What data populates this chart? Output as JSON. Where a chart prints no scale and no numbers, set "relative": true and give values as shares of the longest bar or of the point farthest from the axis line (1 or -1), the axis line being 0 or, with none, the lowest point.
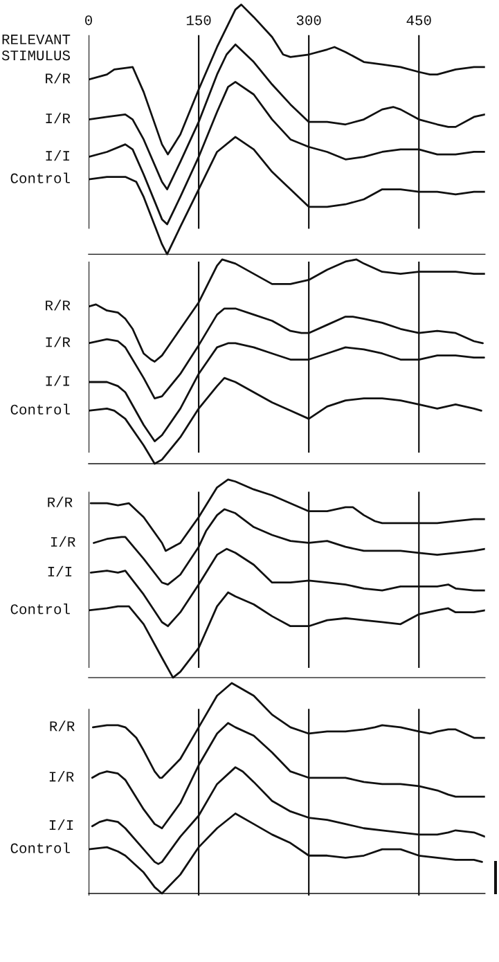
{
  "chart_data": [
    {
      "type": "line",
      "relative": true,
      "xlim": [
        0,
        540
      ],
      "xticks": [
        0,
        150,
        300,
        450
      ],
      "grid": "x",
      "tick_labels": "x",
      "annotations": [
        "RELEVANT\nSTIMULUS"
      ],
      "series": [
        {
          "name": "R/R",
          "color": "#111111",
          "x": [
            0,
            25,
            35,
            60,
            75,
            100,
            108,
            125,
            150,
            175,
            200,
            208,
            225,
            250,
            265,
            275,
            300,
            325,
            335,
            350,
            375,
            400,
            425,
            450,
            465,
            475,
            500,
            525,
            540
          ],
          "values": [
            0.7,
            0.72,
            0.74,
            0.75,
            0.65,
            0.44,
            0.4,
            0.48,
            0.66,
            0.83,
            0.98,
            1.0,
            0.95,
            0.87,
            0.8,
            0.79,
            0.8,
            0.82,
            0.83,
            0.81,
            0.77,
            0.76,
            0.75,
            0.73,
            0.72,
            0.72,
            0.74,
            0.75,
            0.75
          ]
        },
        {
          "name": "I/R",
          "color": "#111111",
          "x": [
            0,
            25,
            50,
            60,
            75,
            100,
            107,
            125,
            150,
            175,
            188,
            200,
            225,
            250,
            275,
            300,
            325,
            350,
            375,
            400,
            415,
            425,
            450,
            475,
            490,
            500,
            525,
            540
          ],
          "values": [
            0.54,
            0.55,
            0.56,
            0.54,
            0.46,
            0.29,
            0.26,
            0.37,
            0.53,
            0.72,
            0.8,
            0.84,
            0.77,
            0.68,
            0.6,
            0.53,
            0.53,
            0.52,
            0.54,
            0.58,
            0.59,
            0.58,
            0.54,
            0.52,
            0.51,
            0.51,
            0.55,
            0.56
          ]
        },
        {
          "name": "I/I",
          "color": "#111111",
          "x": [
            0,
            25,
            50,
            60,
            75,
            100,
            107,
            125,
            150,
            175,
            190,
            200,
            225,
            250,
            275,
            300,
            325,
            350,
            375,
            400,
            425,
            450,
            475,
            500,
            525,
            540
          ],
          "values": [
            0.39,
            0.41,
            0.44,
            0.42,
            0.32,
            0.14,
            0.12,
            0.23,
            0.39,
            0.57,
            0.67,
            0.69,
            0.64,
            0.54,
            0.46,
            0.43,
            0.41,
            0.38,
            0.39,
            0.41,
            0.42,
            0.42,
            0.4,
            0.4,
            0.41,
            0.41
          ]
        },
        {
          "name": "Control",
          "color": "#111111",
          "x": [
            0,
            25,
            50,
            65,
            75,
            100,
            107,
            125,
            150,
            175,
            200,
            225,
            250,
            275,
            300,
            325,
            350,
            375,
            400,
            425,
            450,
            475,
            500,
            525,
            540
          ],
          "values": [
            0.3,
            0.31,
            0.31,
            0.29,
            0.23,
            0.04,
            0.0,
            0.11,
            0.26,
            0.41,
            0.47,
            0.42,
            0.33,
            0.26,
            0.19,
            0.19,
            0.2,
            0.22,
            0.26,
            0.26,
            0.25,
            0.25,
            0.24,
            0.25,
            0.25
          ]
        }
      ]
    },
    {
      "type": "line",
      "relative": true,
      "xlim": [
        0,
        540
      ],
      "xticks": [
        0,
        150,
        300,
        450
      ],
      "grid": "x",
      "tick_labels": false,
      "series": [
        {
          "name": "R/R",
          "color": "#111111",
          "x": [
            0,
            10,
            25,
            40,
            50,
            60,
            75,
            85,
            90,
            100,
            125,
            150,
            175,
            182,
            200,
            225,
            250,
            275,
            300,
            325,
            350,
            365,
            375,
            400,
            425,
            450,
            475,
            500,
            525,
            540
          ],
          "values": [
            0.77,
            0.78,
            0.75,
            0.74,
            0.71,
            0.66,
            0.54,
            0.51,
            0.5,
            0.53,
            0.66,
            0.79,
            0.97,
            1.0,
            0.98,
            0.93,
            0.88,
            0.88,
            0.9,
            0.95,
            0.99,
            1.0,
            0.98,
            0.94,
            0.93,
            0.94,
            0.94,
            0.94,
            0.93,
            0.93
          ]
        },
        {
          "name": "I/R",
          "color": "#111111",
          "x": [
            0,
            25,
            40,
            50,
            75,
            90,
            100,
            125,
            150,
            175,
            185,
            200,
            225,
            250,
            275,
            290,
            300,
            325,
            350,
            360,
            375,
            400,
            425,
            450,
            475,
            500,
            525,
            537
          ],
          "values": [
            0.59,
            0.61,
            0.6,
            0.57,
            0.42,
            0.32,
            0.33,
            0.44,
            0.58,
            0.73,
            0.76,
            0.76,
            0.73,
            0.7,
            0.65,
            0.64,
            0.64,
            0.68,
            0.72,
            0.72,
            0.71,
            0.69,
            0.66,
            0.64,
            0.65,
            0.64,
            0.6,
            0.59
          ]
        },
        {
          "name": "I/I",
          "color": "#111111",
          "x": [
            0,
            25,
            40,
            50,
            75,
            90,
            100,
            125,
            150,
            175,
            190,
            200,
            225,
            250,
            275,
            300,
            325,
            350,
            375,
            400,
            425,
            450,
            475,
            500,
            525,
            539
          ],
          "values": [
            0.4,
            0.4,
            0.38,
            0.35,
            0.19,
            0.11,
            0.14,
            0.27,
            0.44,
            0.57,
            0.59,
            0.59,
            0.57,
            0.54,
            0.51,
            0.51,
            0.54,
            0.57,
            0.56,
            0.54,
            0.51,
            0.51,
            0.53,
            0.53,
            0.52,
            0.52
          ]
        },
        {
          "name": "Control",
          "color": "#111111",
          "x": [
            0,
            25,
            35,
            50,
            75,
            90,
            100,
            125,
            150,
            175,
            185,
            200,
            225,
            250,
            275,
            300,
            325,
            350,
            375,
            400,
            425,
            450,
            475,
            500,
            525,
            535
          ],
          "values": [
            0.26,
            0.27,
            0.26,
            0.22,
            0.09,
            0.0,
            0.02,
            0.13,
            0.27,
            0.38,
            0.42,
            0.4,
            0.35,
            0.3,
            0.26,
            0.22,
            0.28,
            0.31,
            0.32,
            0.32,
            0.31,
            0.29,
            0.27,
            0.29,
            0.27,
            0.26
          ]
        }
      ]
    },
    {
      "type": "line",
      "relative": true,
      "xlim": [
        0,
        540
      ],
      "xticks": [
        0,
        150,
        300,
        450
      ],
      "grid": "x",
      "tick_labels": false,
      "series": [
        {
          "name": "R/R",
          "color": "#111111",
          "x": [
            3,
            25,
            40,
            55,
            75,
            100,
            105,
            125,
            150,
            175,
            190,
            200,
            225,
            250,
            275,
            300,
            325,
            350,
            360,
            375,
            390,
            400,
            425,
            450,
            475,
            500,
            525,
            540
          ],
          "values": [
            0.88,
            0.88,
            0.87,
            0.88,
            0.81,
            0.68,
            0.64,
            0.68,
            0.81,
            0.96,
            1.0,
            0.99,
            0.95,
            0.92,
            0.88,
            0.84,
            0.84,
            0.86,
            0.86,
            0.82,
            0.79,
            0.78,
            0.78,
            0.78,
            0.78,
            0.79,
            0.8,
            0.8
          ]
        },
        {
          "name": "I/R",
          "color": "#111111",
          "x": [
            7,
            25,
            45,
            50,
            75,
            100,
            108,
            125,
            150,
            160,
            175,
            185,
            200,
            225,
            250,
            275,
            300,
            325,
            350,
            375,
            400,
            425,
            450,
            475,
            500,
            525,
            540
          ],
          "values": [
            0.68,
            0.7,
            0.71,
            0.71,
            0.6,
            0.48,
            0.47,
            0.52,
            0.66,
            0.74,
            0.82,
            0.85,
            0.83,
            0.76,
            0.72,
            0.69,
            0.68,
            0.69,
            0.66,
            0.64,
            0.64,
            0.64,
            0.63,
            0.62,
            0.63,
            0.64,
            0.65
          ]
        },
        {
          "name": "I/I",
          "color": "#111111",
          "x": [
            3,
            25,
            40,
            50,
            75,
            100,
            108,
            125,
            150,
            175,
            188,
            200,
            225,
            250,
            275,
            300,
            325,
            350,
            375,
            400,
            425,
            450,
            475,
            490,
            500,
            525,
            540
          ],
          "values": [
            0.53,
            0.54,
            0.53,
            0.54,
            0.42,
            0.28,
            0.26,
            0.33,
            0.47,
            0.62,
            0.65,
            0.63,
            0.57,
            0.48,
            0.48,
            0.49,
            0.48,
            0.47,
            0.45,
            0.44,
            0.46,
            0.46,
            0.46,
            0.47,
            0.45,
            0.44,
            0.44
          ]
        },
        {
          "name": "Control",
          "color": "#111111",
          "x": [
            0,
            25,
            40,
            55,
            75,
            100,
            115,
            125,
            150,
            175,
            190,
            200,
            225,
            250,
            275,
            300,
            325,
            350,
            375,
            400,
            425,
            450,
            475,
            490,
            500,
            525,
            540
          ],
          "values": [
            0.34,
            0.35,
            0.36,
            0.36,
            0.27,
            0.1,
            0.0,
            0.03,
            0.15,
            0.36,
            0.43,
            0.41,
            0.37,
            0.31,
            0.26,
            0.26,
            0.29,
            0.3,
            0.29,
            0.28,
            0.27,
            0.32,
            0.34,
            0.35,
            0.33,
            0.33,
            0.34
          ]
        }
      ]
    },
    {
      "type": "line",
      "relative": true,
      "xlim": [
        0,
        540
      ],
      "xticks": [
        0,
        150,
        300,
        450
      ],
      "grid": "x",
      "tick_labels": false,
      "series": [
        {
          "name": "R/R",
          "color": "#111111",
          "x": [
            6,
            25,
            40,
            50,
            65,
            75,
            90,
            97,
            100,
            125,
            150,
            175,
            195,
            200,
            225,
            250,
            275,
            300,
            325,
            350,
            375,
            390,
            400,
            425,
            450,
            465,
            475,
            490,
            500,
            525,
            540
          ],
          "values": [
            0.79,
            0.8,
            0.8,
            0.79,
            0.74,
            0.68,
            0.58,
            0.55,
            0.55,
            0.64,
            0.79,
            0.94,
            1.0,
            0.99,
            0.94,
            0.85,
            0.79,
            0.76,
            0.77,
            0.77,
            0.78,
            0.79,
            0.8,
            0.79,
            0.77,
            0.76,
            0.77,
            0.78,
            0.78,
            0.74,
            0.74
          ]
        },
        {
          "name": "I/R",
          "color": "#111111",
          "x": [
            5,
            15,
            25,
            40,
            50,
            75,
            90,
            100,
            125,
            150,
            175,
            190,
            200,
            225,
            250,
            275,
            300,
            325,
            350,
            375,
            400,
            425,
            450,
            475,
            490,
            500,
            525,
            540
          ],
          "values": [
            0.55,
            0.57,
            0.58,
            0.57,
            0.54,
            0.4,
            0.33,
            0.31,
            0.43,
            0.61,
            0.76,
            0.81,
            0.79,
            0.75,
            0.67,
            0.58,
            0.55,
            0.55,
            0.55,
            0.53,
            0.52,
            0.52,
            0.51,
            0.49,
            0.47,
            0.46,
            0.46,
            0.46
          ]
        },
        {
          "name": "I/I",
          "color": "#111111",
          "x": [
            5,
            15,
            25,
            40,
            50,
            75,
            90,
            95,
            100,
            125,
            150,
            175,
            200,
            210,
            225,
            250,
            275,
            300,
            325,
            350,
            375,
            400,
            425,
            450,
            475,
            490,
            500,
            525,
            540
          ],
          "values": [
            0.32,
            0.34,
            0.35,
            0.34,
            0.31,
            0.21,
            0.15,
            0.14,
            0.15,
            0.27,
            0.37,
            0.52,
            0.6,
            0.58,
            0.53,
            0.44,
            0.39,
            0.36,
            0.35,
            0.33,
            0.31,
            0.3,
            0.29,
            0.28,
            0.28,
            0.29,
            0.3,
            0.29,
            0.27
          ]
        },
        {
          "name": "Control",
          "color": "#111111",
          "x": [
            0,
            25,
            40,
            50,
            75,
            90,
            100,
            125,
            150,
            175,
            200,
            225,
            250,
            275,
            300,
            325,
            350,
            375,
            400,
            425,
            450,
            475,
            500,
            525,
            536
          ],
          "values": [
            0.21,
            0.22,
            0.2,
            0.18,
            0.1,
            0.03,
            0.0,
            0.09,
            0.22,
            0.31,
            0.38,
            0.33,
            0.28,
            0.24,
            0.18,
            0.18,
            0.17,
            0.18,
            0.21,
            0.21,
            0.18,
            0.17,
            0.16,
            0.16,
            0.15
          ]
        }
      ]
    }
  ]
}
